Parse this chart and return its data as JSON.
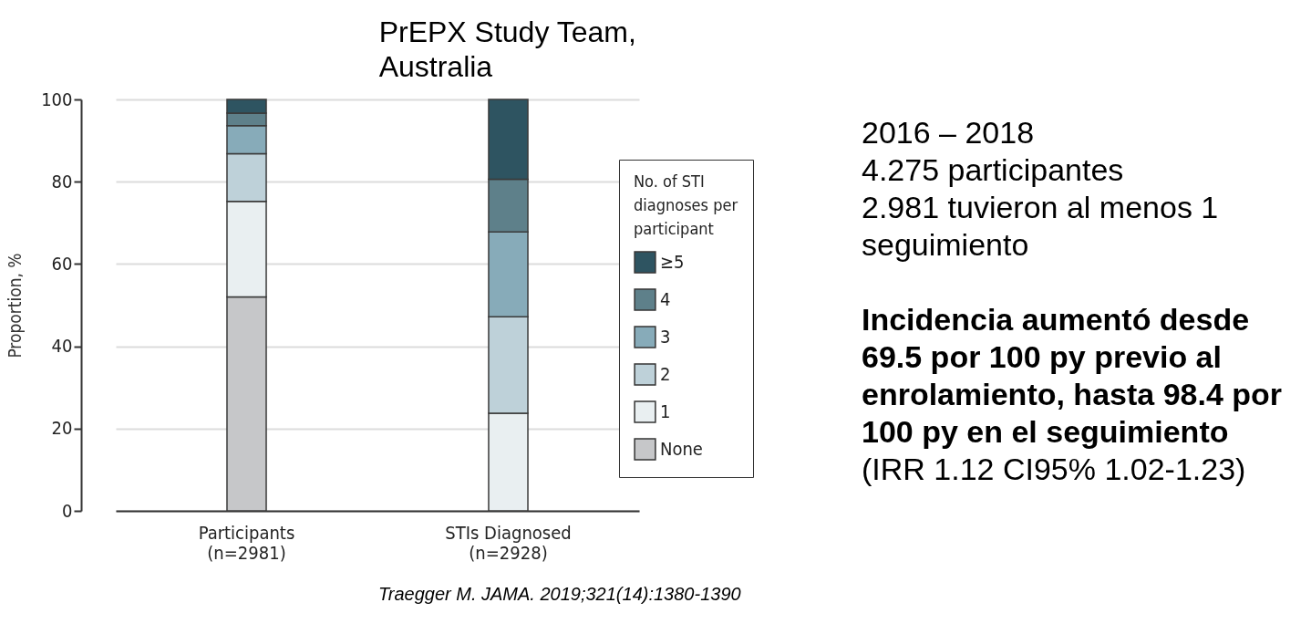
{
  "chart_data": {
    "type": "bar",
    "title": "PrEPX Study Team,\nAustralia",
    "ylabel": "Proportion, %",
    "legend_title": "No. of STI\ndiagnoses per\nparticipant",
    "categories": [
      "Participants\n(n=2981)",
      "STIs Diagnosed\n(n=2928)"
    ],
    "stacked": true,
    "ylim": [
      0,
      100
    ],
    "yticks": [
      0,
      20,
      40,
      60,
      80,
      100
    ],
    "grid": "y",
    "legend": "right",
    "series": [
      {
        "name": "None",
        "color": "#c6c7c9",
        "values": [
          52.0,
          0
        ]
      },
      {
        "name": "1",
        "color": "#e9eff1",
        "values": [
          23.2,
          23.7
        ]
      },
      {
        "name": "2",
        "color": "#bed1d9",
        "values": [
          11.6,
          23.5
        ]
      },
      {
        "name": "3",
        "color": "#87abb9",
        "values": [
          6.8,
          20.6
        ]
      },
      {
        "name": "4",
        "color": "#5e808a",
        "values": [
          3.1,
          12.8
        ]
      },
      {
        "name": "≥5",
        "color": "#2e5461",
        "values": [
          3.3,
          19.4
        ]
      }
    ],
    "annotations": [
      "2016 – 2018",
      "4.275 participantes",
      "2.981 tuvieron al menos 1 seguimiento",
      "Incidencia aumentó desde 69.5 por 100 py previo al enrolamiento, hasta 98.4 por 100 py en el seguimiento",
      "(IRR 1.12 CI95% 1.02-1.23)",
      "Traegger M. JAMA. 2019;321(14):1380-1390"
    ]
  }
}
